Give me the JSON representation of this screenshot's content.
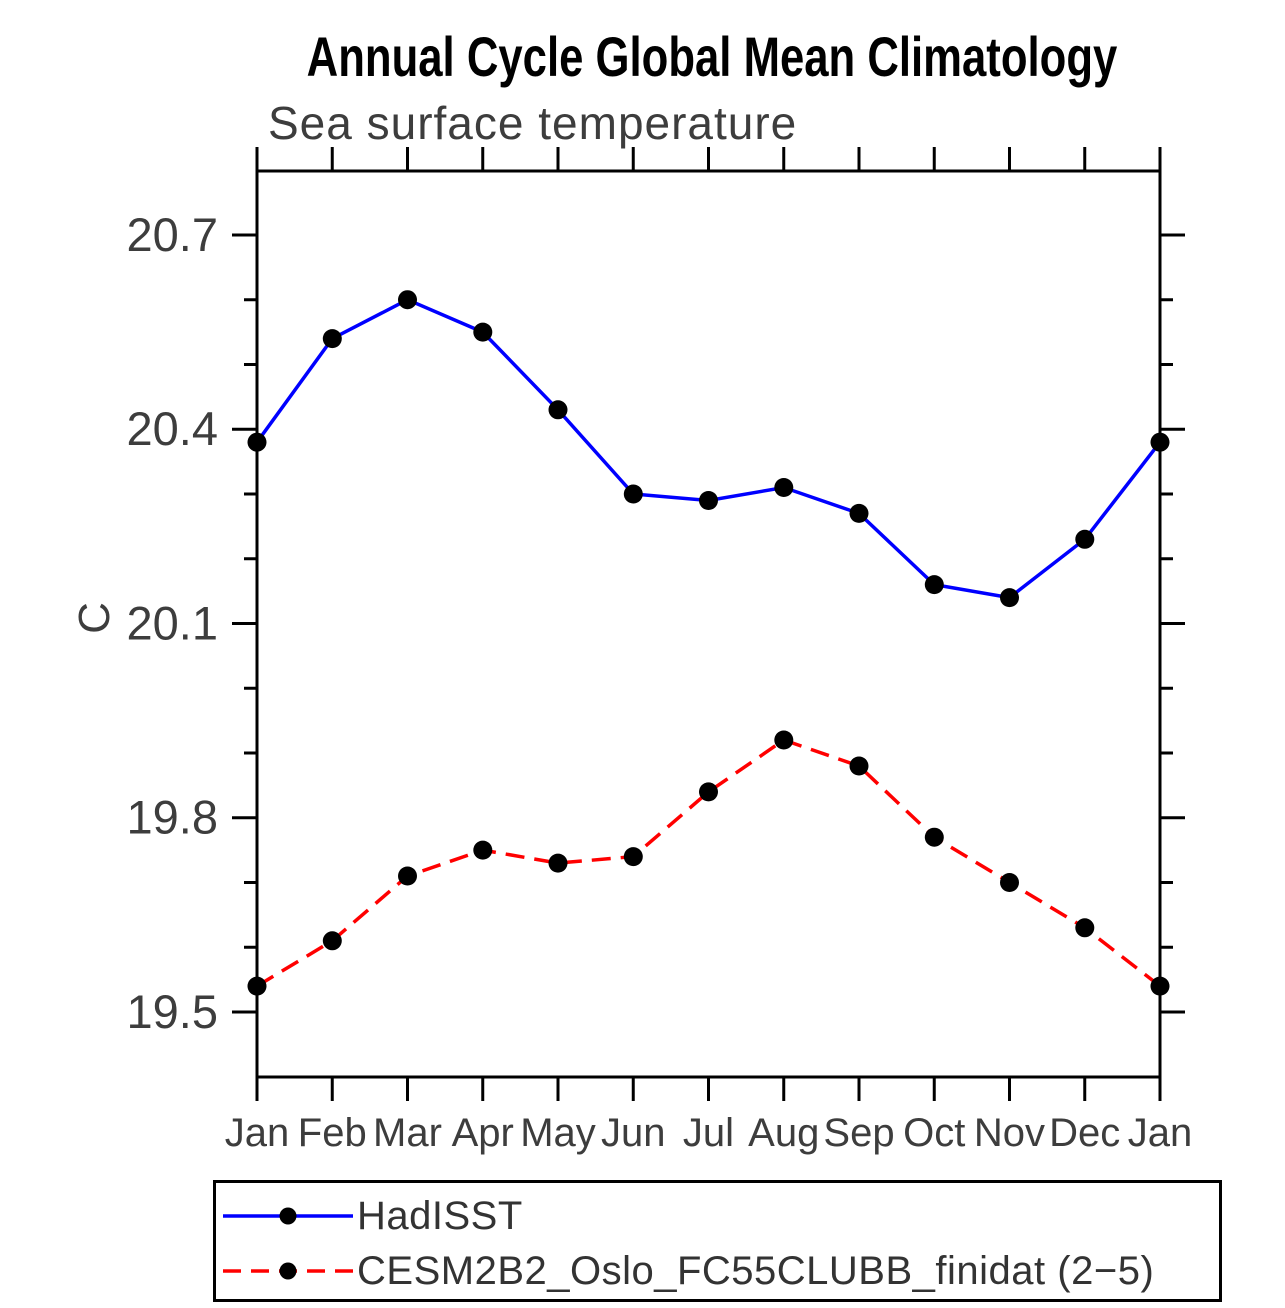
{
  "title": "Annual Cycle Global Mean Climatology",
  "subtitle": "Sea surface temperature",
  "y_axis_label": "C",
  "colors": {
    "axis": "#000000",
    "text": "#3d3d3d",
    "title": "#000000",
    "marker": "#000000",
    "hadisst_line": "#0000ff",
    "cesm_line": "#ff0000"
  },
  "chart_data": {
    "type": "line",
    "title": "Annual Cycle Global Mean Climatology",
    "subtitle": "Sea surface temperature",
    "xlabel": "",
    "ylabel": "C",
    "grid": false,
    "legend_position": "bottom",
    "x_tick_labels": [
      "Jan",
      "Feb",
      "Mar",
      "Apr",
      "May",
      "Jun",
      "Jul",
      "Aug",
      "Sep",
      "Oct",
      "Nov",
      "Dec",
      "Jan"
    ],
    "y_tick_labels": [
      "19.5",
      "19.8",
      "20.1",
      "20.4",
      "20.7"
    ],
    "y_major_ticks": [
      19.5,
      19.8,
      20.1,
      20.4,
      20.7
    ],
    "y_minor_step": 0.1,
    "ylim": [
      19.4,
      20.8
    ],
    "series": [
      {
        "name": "HadISST",
        "style": "solid",
        "color": "#0000ff",
        "marker": "black-dot",
        "values": [
          20.38,
          20.54,
          20.6,
          20.55,
          20.43,
          20.3,
          20.29,
          20.31,
          20.27,
          20.16,
          20.14,
          20.23,
          20.38
        ]
      },
      {
        "name": "CESM2B2_Oslo_FC55CLUBB_finidat (2−5)",
        "style": "dashed",
        "color": "#ff0000",
        "marker": "black-dot",
        "values": [
          19.54,
          19.61,
          19.71,
          19.75,
          19.73,
          19.74,
          19.84,
          19.92,
          19.88,
          19.77,
          19.7,
          19.63,
          19.54
        ]
      }
    ]
  },
  "legend": {
    "items": [
      {
        "label": "HadISST"
      },
      {
        "label": "CESM2B2_Oslo_FC55CLUBB_finidat (2−5)"
      }
    ]
  }
}
